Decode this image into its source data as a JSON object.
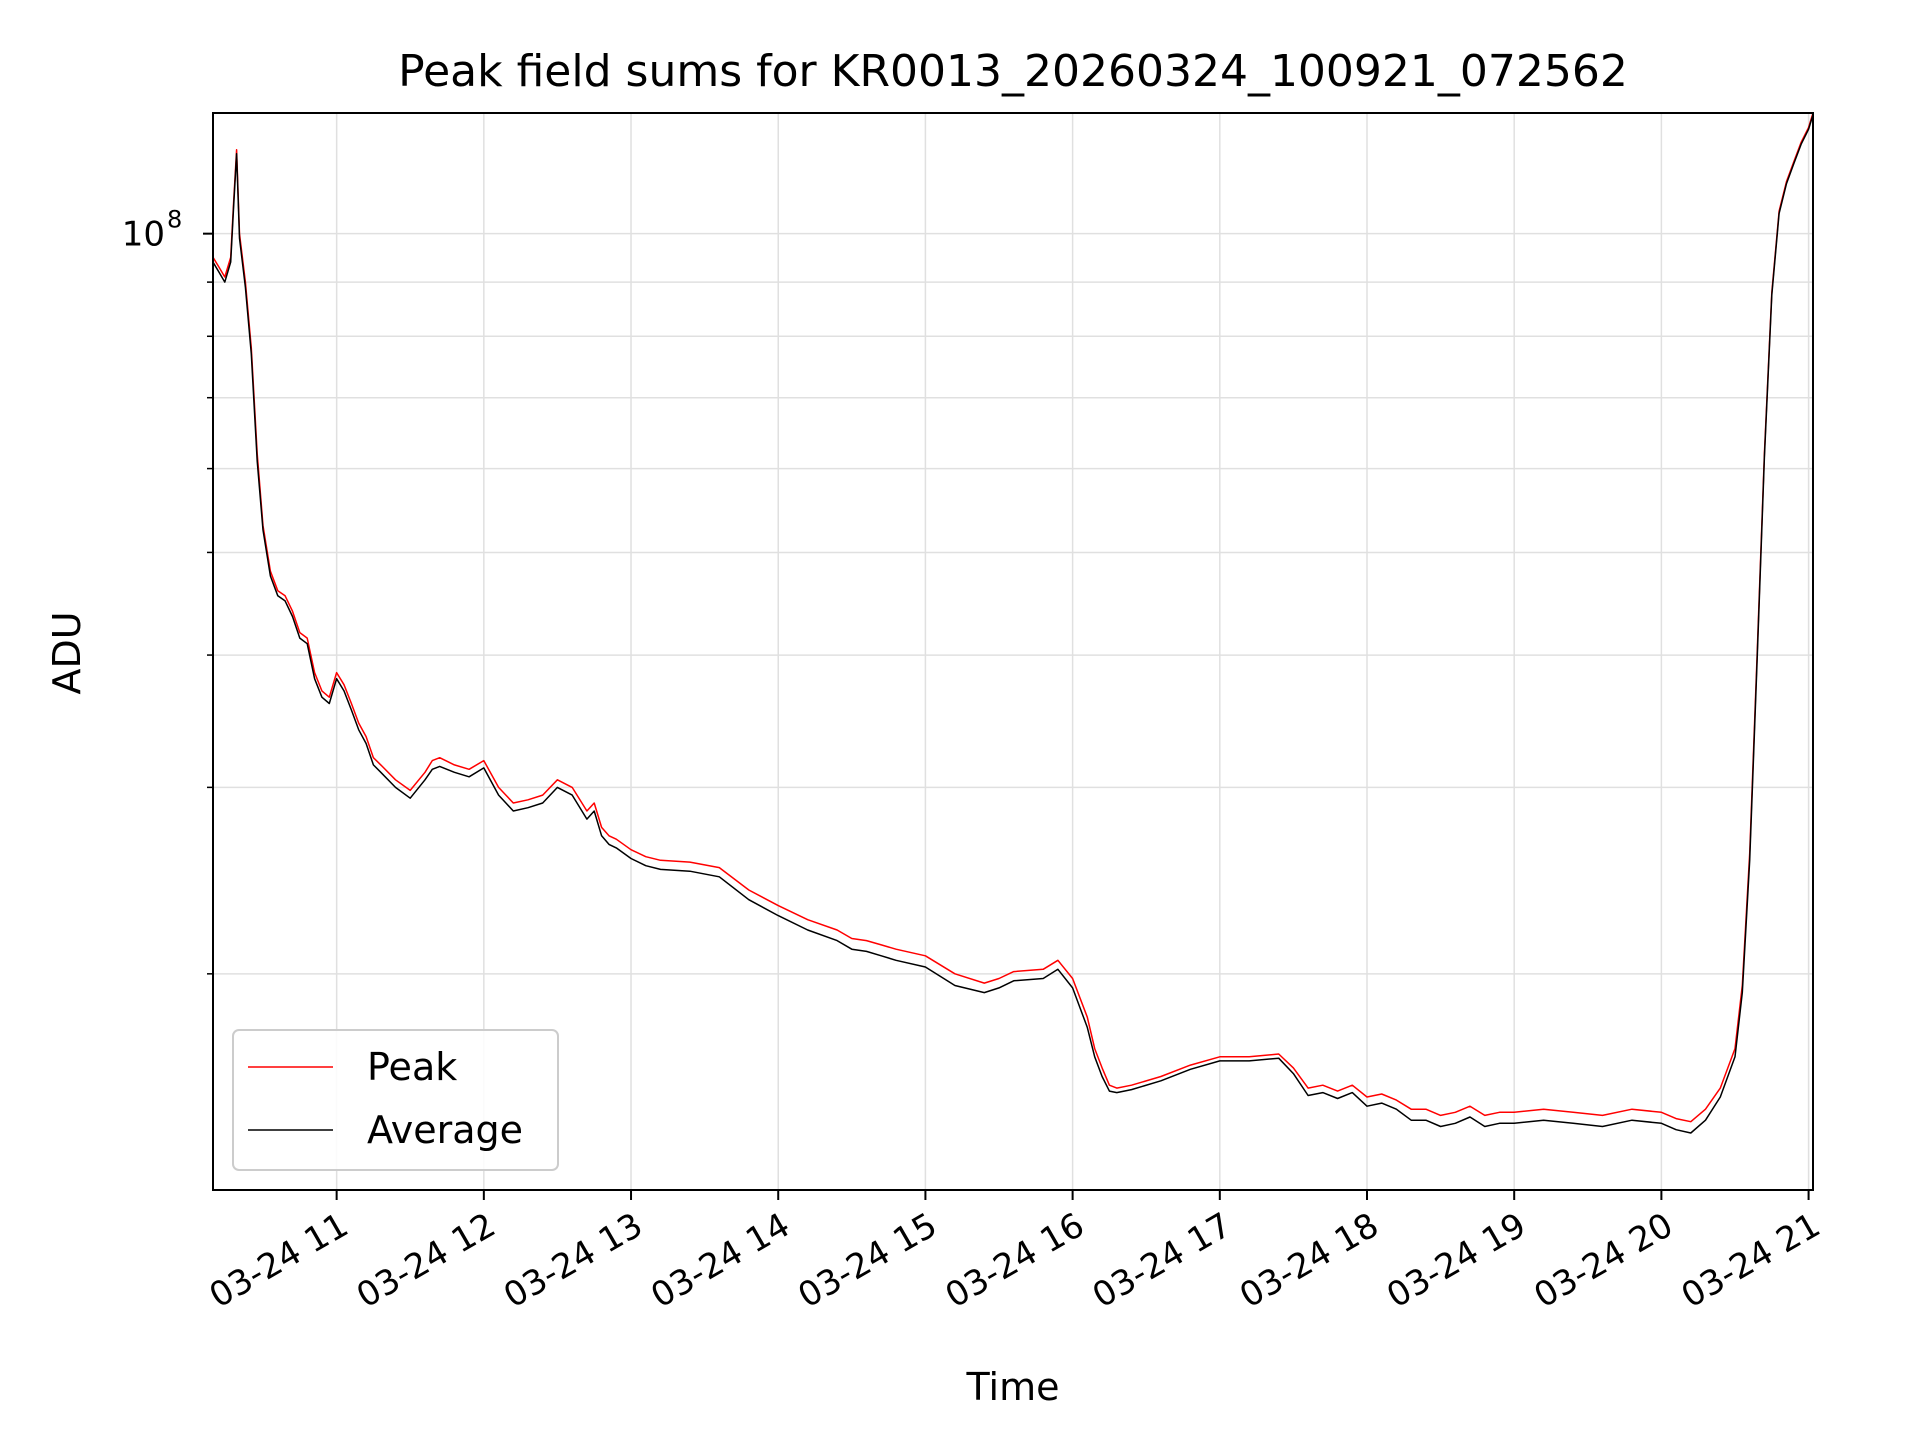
{
  "chart_data": {
    "type": "line",
    "title": "Peak field sums for KR0013_20260324_100921_072562",
    "xlabel": "Time",
    "ylabel": "ADU",
    "y_scale": "log",
    "ylim": [
      12500000,
      130000000
    ],
    "xlim": [
      10.16,
      21.03
    ],
    "y_ticks": [
      {
        "value": 100000000,
        "label": "10",
        "exp": "8"
      }
    ],
    "y_minor_ticks": [
      20000000,
      30000000,
      40000000,
      50000000,
      60000000,
      70000000,
      80000000,
      90000000
    ],
    "x_ticks": [
      {
        "value": 11,
        "label": "03-24 11"
      },
      {
        "value": 12,
        "label": "03-24 12"
      },
      {
        "value": 13,
        "label": "03-24 13"
      },
      {
        "value": 14,
        "label": "03-24 14"
      },
      {
        "value": 15,
        "label": "03-24 15"
      },
      {
        "value": 16,
        "label": "03-24 16"
      },
      {
        "value": 17,
        "label": "03-24 17"
      },
      {
        "value": 18,
        "label": "03-24 18"
      },
      {
        "value": 19,
        "label": "03-24 19"
      },
      {
        "value": 20,
        "label": "03-24 20"
      },
      {
        "value": 21,
        "label": "03-24 21"
      }
    ],
    "grid": true,
    "legend_position": "lower-left",
    "series": [
      {
        "name": "Peak",
        "color": "#ff0000",
        "x": [
          10.16,
          10.2,
          10.24,
          10.28,
          10.3,
          10.32,
          10.34,
          10.38,
          10.42,
          10.46,
          10.5,
          10.55,
          10.6,
          10.65,
          10.7,
          10.75,
          10.8,
          10.85,
          10.9,
          10.95,
          11.0,
          11.05,
          11.1,
          11.15,
          11.2,
          11.25,
          11.3,
          11.4,
          11.5,
          11.6,
          11.65,
          11.7,
          11.8,
          11.9,
          12.0,
          12.1,
          12.15,
          12.2,
          12.3,
          12.4,
          12.5,
          12.6,
          12.7,
          12.75,
          12.8,
          12.85,
          12.9,
          13.0,
          13.1,
          13.2,
          13.4,
          13.6,
          13.8,
          14.0,
          14.2,
          14.4,
          14.5,
          14.6,
          14.7,
          14.8,
          15.0,
          15.2,
          15.4,
          15.5,
          15.6,
          15.8,
          15.9,
          16.0,
          16.1,
          16.15,
          16.2,
          16.25,
          16.3,
          16.4,
          16.6,
          16.8,
          17.0,
          17.2,
          17.4,
          17.5,
          17.6,
          17.7,
          17.8,
          17.9,
          18.0,
          18.1,
          18.2,
          18.3,
          18.4,
          18.5,
          18.6,
          18.7,
          18.8,
          18.9,
          19.0,
          19.2,
          19.4,
          19.6,
          19.8,
          20.0,
          20.1,
          20.2,
          20.3,
          20.4,
          20.5,
          20.55,
          20.6,
          20.65,
          20.7,
          20.75,
          20.8,
          20.85,
          20.9,
          20.95,
          21.0,
          21.03
        ],
        "values": [
          95000000,
          93000000,
          91000000,
          95000000,
          107000000,
          120000000,
          100000000,
          90000000,
          78000000,
          62000000,
          53000000,
          48000000,
          46000000,
          45500000,
          44000000,
          42000000,
          41500000,
          38500000,
          37000000,
          36500000,
          38500000,
          37500000,
          36000000,
          34500000,
          33500000,
          32000000,
          31500000,
          30500000,
          29800000,
          31000000,
          31800000,
          32000000,
          31500000,
          31200000,
          31800000,
          30000000,
          29500000,
          29000000,
          29200000,
          29500000,
          30500000,
          30000000,
          28500000,
          29000000,
          27500000,
          27000000,
          26800000,
          26200000,
          25800000,
          25600000,
          25500000,
          25200000,
          24000000,
          23200000,
          22500000,
          22000000,
          21600000,
          21500000,
          21300000,
          21100000,
          20800000,
          20000000,
          19600000,
          19800000,
          20100000,
          20200000,
          20600000,
          19800000,
          18200000,
          17000000,
          16300000,
          15700000,
          15600000,
          15700000,
          16000000,
          16400000,
          16700000,
          16700000,
          16800000,
          16300000,
          15600000,
          15700000,
          15500000,
          15700000,
          15300000,
          15400000,
          15200000,
          14900000,
          14900000,
          14700000,
          14800000,
          15000000,
          14700000,
          14800000,
          14800000,
          14900000,
          14800000,
          14700000,
          14900000,
          14800000,
          14600000,
          14500000,
          14900000,
          15600000,
          17000000,
          19500000,
          26000000,
          40000000,
          62000000,
          88000000,
          105000000,
          112000000,
          117000000,
          122000000,
          126000000,
          130000000
        ]
      },
      {
        "name": "Average",
        "color": "#000000",
        "x": [
          10.16,
          10.2,
          10.24,
          10.28,
          10.3,
          10.32,
          10.34,
          10.38,
          10.42,
          10.46,
          10.5,
          10.55,
          10.6,
          10.65,
          10.7,
          10.75,
          10.8,
          10.85,
          10.9,
          10.95,
          11.0,
          11.05,
          11.1,
          11.15,
          11.2,
          11.25,
          11.3,
          11.4,
          11.5,
          11.6,
          11.65,
          11.7,
          11.8,
          11.9,
          12.0,
          12.1,
          12.15,
          12.2,
          12.3,
          12.4,
          12.5,
          12.6,
          12.7,
          12.75,
          12.8,
          12.85,
          12.9,
          13.0,
          13.1,
          13.2,
          13.4,
          13.6,
          13.8,
          14.0,
          14.2,
          14.4,
          14.5,
          14.6,
          14.7,
          14.8,
          15.0,
          15.2,
          15.4,
          15.5,
          15.6,
          15.8,
          15.9,
          16.0,
          16.1,
          16.15,
          16.2,
          16.25,
          16.3,
          16.4,
          16.6,
          16.8,
          17.0,
          17.2,
          17.4,
          17.5,
          17.6,
          17.7,
          17.8,
          17.9,
          18.0,
          18.1,
          18.2,
          18.3,
          18.4,
          18.5,
          18.6,
          18.7,
          18.8,
          18.9,
          19.0,
          19.2,
          19.4,
          19.6,
          19.8,
          20.0,
          20.1,
          20.2,
          20.3,
          20.4,
          20.5,
          20.55,
          20.6,
          20.65,
          20.7,
          20.75,
          20.8,
          20.85,
          20.9,
          20.95,
          21.0,
          21.03
        ],
        "values": [
          94000000,
          92000000,
          90000000,
          94000000,
          106000000,
          119000000,
          99000000,
          89000000,
          77000000,
          61000000,
          52500000,
          47500000,
          45500000,
          45000000,
          43500000,
          41500000,
          41000000,
          38000000,
          36500000,
          36000000,
          38000000,
          37000000,
          35500000,
          34000000,
          33000000,
          31500000,
          31000000,
          30000000,
          29300000,
          30500000,
          31200000,
          31400000,
          31000000,
          30700000,
          31300000,
          29500000,
          29000000,
          28500000,
          28700000,
          29000000,
          30000000,
          29500000,
          28000000,
          28500000,
          27000000,
          26500000,
          26300000,
          25700000,
          25300000,
          25100000,
          25000000,
          24700000,
          23500000,
          22700000,
          22000000,
          21500000,
          21100000,
          21000000,
          20800000,
          20600000,
          20300000,
          19500000,
          19200000,
          19400000,
          19700000,
          19800000,
          20200000,
          19400000,
          17800000,
          16700000,
          16000000,
          15500000,
          15450000,
          15550000,
          15850000,
          16250000,
          16550000,
          16550000,
          16650000,
          16100000,
          15350000,
          15450000,
          15250000,
          15450000,
          15000000,
          15100000,
          14900000,
          14550000,
          14550000,
          14350000,
          14450000,
          14650000,
          14350000,
          14450000,
          14450000,
          14550000,
          14450000,
          14350000,
          14550000,
          14450000,
          14250000,
          14150000,
          14550000,
          15300000,
          16700000,
          19200000,
          25600000,
          39500000,
          61500000,
          87500000,
          104500000,
          111500000,
          116500000,
          121500000,
          125500000,
          129500000
        ]
      }
    ]
  }
}
